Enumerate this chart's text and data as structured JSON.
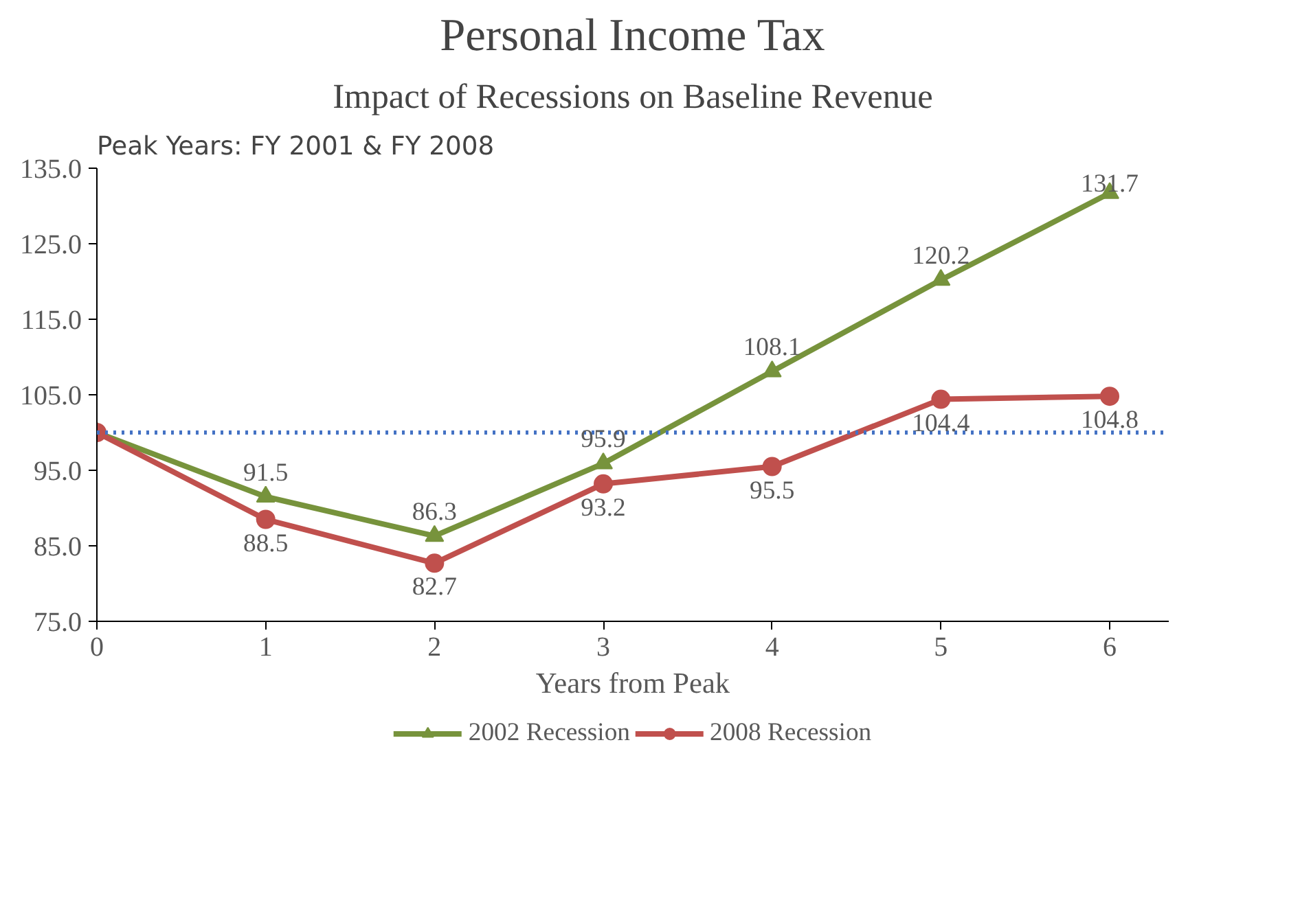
{
  "chart_data": {
    "type": "line",
    "title": "Personal Income Tax",
    "subtitle": "Impact of Recessions on Baseline Revenue",
    "xlabel": "Years from Peak",
    "annotations": [
      "Peak Years: FY 2001 & FY 2008"
    ],
    "x": [
      0,
      1,
      2,
      3,
      4,
      5,
      6
    ],
    "series": [
      {
        "name": "2002 Recession",
        "color": "#77933c",
        "marker": "triangle",
        "values": [
          100,
          91.5,
          86.3,
          95.9,
          108.1,
          120.2,
          131.7
        ],
        "value_labels": [
          null,
          "91.5",
          "86.3",
          "95.9",
          "108.1",
          "120.2",
          "131.7"
        ]
      },
      {
        "name": "2008 Recession",
        "color": "#c0504d",
        "marker": "circle",
        "values": [
          100,
          88.5,
          82.7,
          93.2,
          95.5,
          104.4,
          104.8
        ],
        "value_labels": [
          null,
          "88.5",
          "82.7",
          "93.2",
          "95.5",
          "104.4",
          "104.8"
        ]
      }
    ],
    "ylim": [
      75,
      135
    ],
    "yticks": [
      {
        "value": 75,
        "label": "75.0"
      },
      {
        "value": 85,
        "label": "85.0"
      },
      {
        "value": 95,
        "label": "95.0"
      },
      {
        "value": 105,
        "label": "105.0"
      },
      {
        "value": 115,
        "label": "115.0"
      },
      {
        "value": 125,
        "label": "125.0"
      },
      {
        "value": 135,
        "label": "135.0"
      }
    ],
    "xlim": [
      0,
      6.35
    ],
    "xticks": [
      0,
      1,
      2,
      3,
      4,
      5,
      6
    ],
    "ref_lines": [
      {
        "axis": "y",
        "value": 100,
        "color": "#4472c4",
        "line_style": "dotted"
      }
    ],
    "grid": false,
    "legend": "bottom",
    "line_style": "solid"
  }
}
